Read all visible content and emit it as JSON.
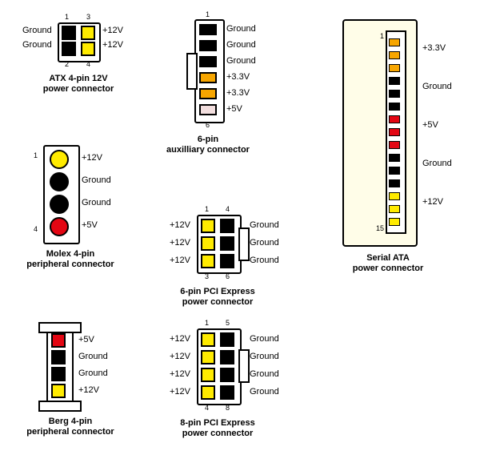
{
  "colors": {
    "yellow": "#ffeb00",
    "black": "#000000",
    "red": "#e30613",
    "orange": "#f7a600",
    "white": "#ffffff",
    "cream": "#fffde8",
    "pinkish": "#f2dede"
  },
  "atx4": {
    "title1": "ATX 4-pin 12V",
    "title2": "power connector",
    "l1": "Ground",
    "l2": "Ground",
    "r1": "+12V",
    "r2": "+12V",
    "n1": "1",
    "n2": "2",
    "n3": "3",
    "n4": "4",
    "pins": [
      "black",
      "black",
      "yellow",
      "yellow"
    ]
  },
  "aux6": {
    "title1": "6-pin",
    "title2": "auxilliary connector",
    "labels": [
      "Ground",
      "Ground",
      "Ground",
      "+3.3V",
      "+3.3V",
      "+5V"
    ],
    "n1": "1",
    "n6": "6",
    "pins": [
      "black",
      "black",
      "black",
      "orange",
      "orange",
      "pinkish"
    ]
  },
  "sata": {
    "title1": "Serial ATA",
    "title2": "power connector",
    "labels": [
      "+3.3V",
      "Ground",
      "+5V",
      "Ground",
      "+12V"
    ],
    "n1": "1",
    "n15": "15",
    "bands": [
      {
        "c": "orange",
        "n": 3
      },
      {
        "c": "black",
        "n": 3
      },
      {
        "c": "red",
        "n": 3
      },
      {
        "c": "black",
        "n": 3
      },
      {
        "c": "yellow",
        "n": 3
      }
    ]
  },
  "molex": {
    "title1": "Molex 4-pin",
    "title2": "peripheral connector",
    "labels": [
      "+12V",
      "Ground",
      "Ground",
      "+5V"
    ],
    "n1": "1",
    "n4": "4",
    "pins": [
      "yellow",
      "black",
      "black",
      "red"
    ]
  },
  "pcie6": {
    "title1": "6-pin PCI Express",
    "title2": "power connector",
    "llabels": [
      "+12V",
      "+12V",
      "+12V"
    ],
    "rlabels": [
      "Ground",
      "Ground",
      "Ground"
    ],
    "n1": "1",
    "n3": "3",
    "n4": "4",
    "n6": "6",
    "lpins": [
      "yellow",
      "yellow",
      "yellow"
    ],
    "rpins": [
      "black",
      "black",
      "black"
    ]
  },
  "berg": {
    "title1": "Berg 4-pin",
    "title2": "peripheral connector",
    "labels": [
      "+5V",
      "Ground",
      "Ground",
      "+12V"
    ],
    "pins": [
      "red",
      "black",
      "black",
      "yellow"
    ]
  },
  "pcie8": {
    "title1": "8-pin PCI Express",
    "title2": "power connector",
    "llabels": [
      "+12V",
      "+12V",
      "+12V",
      "+12V"
    ],
    "rlabels": [
      "Ground",
      "Ground",
      "Ground",
      "Ground"
    ],
    "n1": "1",
    "n4": "4",
    "n5": "5",
    "n8": "8",
    "lpins": [
      "yellow",
      "yellow",
      "yellow",
      "yellow"
    ],
    "rpins": [
      "black",
      "black",
      "black",
      "black"
    ]
  }
}
